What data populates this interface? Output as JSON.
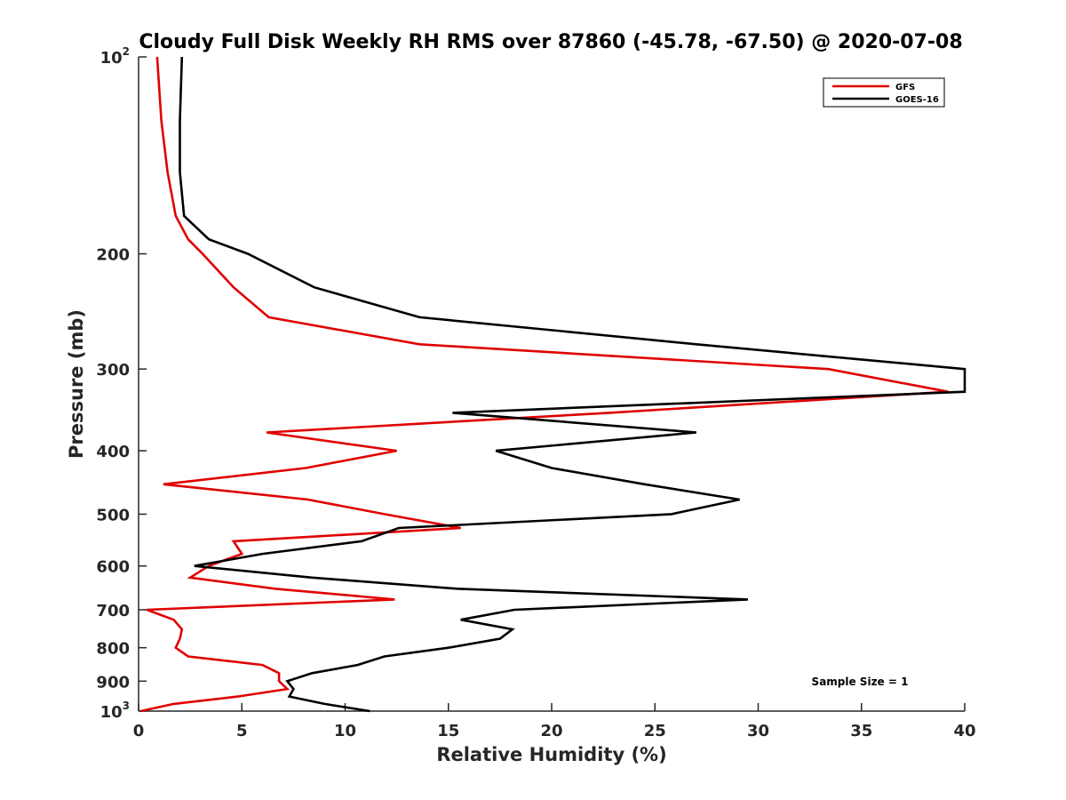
{
  "chart_data": {
    "type": "line",
    "title": "Cloudy Full Disk Weekly RH RMS over 87860 (-45.78, -67.50) @ 2020-07-08",
    "xlabel": "Relative Humidity (%)",
    "ylabel": "Pressure (mb)",
    "xlim": [
      0,
      40
    ],
    "ylim": [
      100,
      1000
    ],
    "y_scale": "log",
    "y_reversed": true,
    "grid": false,
    "legend_position": "top-right",
    "x_ticks": [
      "0",
      "5",
      "10",
      "15",
      "20",
      "25",
      "30",
      "35",
      "40"
    ],
    "y_ticks": [
      {
        "value": 100,
        "label": "10",
        "exp": "2"
      },
      {
        "value": 200,
        "label": "200"
      },
      {
        "value": 300,
        "label": "300"
      },
      {
        "value": 400,
        "label": "400"
      },
      {
        "value": 500,
        "label": "500"
      },
      {
        "value": 600,
        "label": "600"
      },
      {
        "value": 700,
        "label": "700"
      },
      {
        "value": 800,
        "label": "800"
      },
      {
        "value": 900,
        "label": "900"
      },
      {
        "value": 1000,
        "label": "10",
        "exp": "3"
      }
    ],
    "annotation": "Sample Size = 1",
    "series": [
      {
        "name": "GFS",
        "color": "#e00000",
        "points": [
          [
            0.9,
            100
          ],
          [
            1.1,
            125
          ],
          [
            1.4,
            150
          ],
          [
            1.8,
            175
          ],
          [
            2.4,
            190
          ],
          [
            3.1,
            200
          ],
          [
            4.6,
            225
          ],
          [
            6.3,
            250
          ],
          [
            13.6,
            275
          ],
          [
            33.4,
            300
          ],
          [
            39.2,
            325
          ],
          [
            22.8,
            350
          ],
          [
            6.2,
            375
          ],
          [
            12.5,
            400
          ],
          [
            8.1,
            425
          ],
          [
            1.2,
            450
          ],
          [
            8.2,
            475
          ],
          [
            11.9,
            500
          ],
          [
            15.6,
            525
          ],
          [
            4.6,
            550
          ],
          [
            5.0,
            575
          ],
          [
            3.4,
            600
          ],
          [
            2.5,
            625
          ],
          [
            6.6,
            650
          ],
          [
            12.4,
            675
          ],
          [
            0.4,
            700
          ],
          [
            1.7,
            725
          ],
          [
            2.1,
            750
          ],
          [
            2.0,
            775
          ],
          [
            1.8,
            800
          ],
          [
            2.4,
            825
          ],
          [
            6.0,
            850
          ],
          [
            6.8,
            875
          ],
          [
            6.8,
            900
          ],
          [
            7.2,
            925
          ],
          [
            4.8,
            950
          ],
          [
            1.7,
            975
          ],
          [
            0.1,
            1000
          ]
        ]
      },
      {
        "name": "GOES-16",
        "color": "#000000",
        "points": [
          [
            2.1,
            100
          ],
          [
            2.0,
            125
          ],
          [
            2.0,
            150
          ],
          [
            2.2,
            175
          ],
          [
            3.4,
            190
          ],
          [
            5.3,
            200
          ],
          [
            8.5,
            225
          ],
          [
            13.6,
            250
          ],
          [
            27.0,
            275
          ],
          [
            40.0,
            300
          ],
          [
            40.0,
            325
          ],
          [
            15.2,
            350
          ],
          [
            27.0,
            375
          ],
          [
            17.3,
            400
          ],
          [
            20.0,
            425
          ],
          [
            24.5,
            450
          ],
          [
            29.1,
            475
          ],
          [
            25.8,
            500
          ],
          [
            12.6,
            525
          ],
          [
            10.8,
            550
          ],
          [
            6.0,
            575
          ],
          [
            2.7,
            600
          ],
          [
            8.4,
            625
          ],
          [
            15.4,
            650
          ],
          [
            29.5,
            675
          ],
          [
            18.2,
            700
          ],
          [
            15.6,
            725
          ],
          [
            18.1,
            750
          ],
          [
            17.5,
            775
          ],
          [
            15.0,
            800
          ],
          [
            11.9,
            825
          ],
          [
            10.6,
            850
          ],
          [
            8.4,
            875
          ],
          [
            7.2,
            900
          ],
          [
            7.5,
            925
          ],
          [
            7.3,
            950
          ],
          [
            9.0,
            975
          ],
          [
            11.2,
            1000
          ]
        ]
      }
    ]
  }
}
